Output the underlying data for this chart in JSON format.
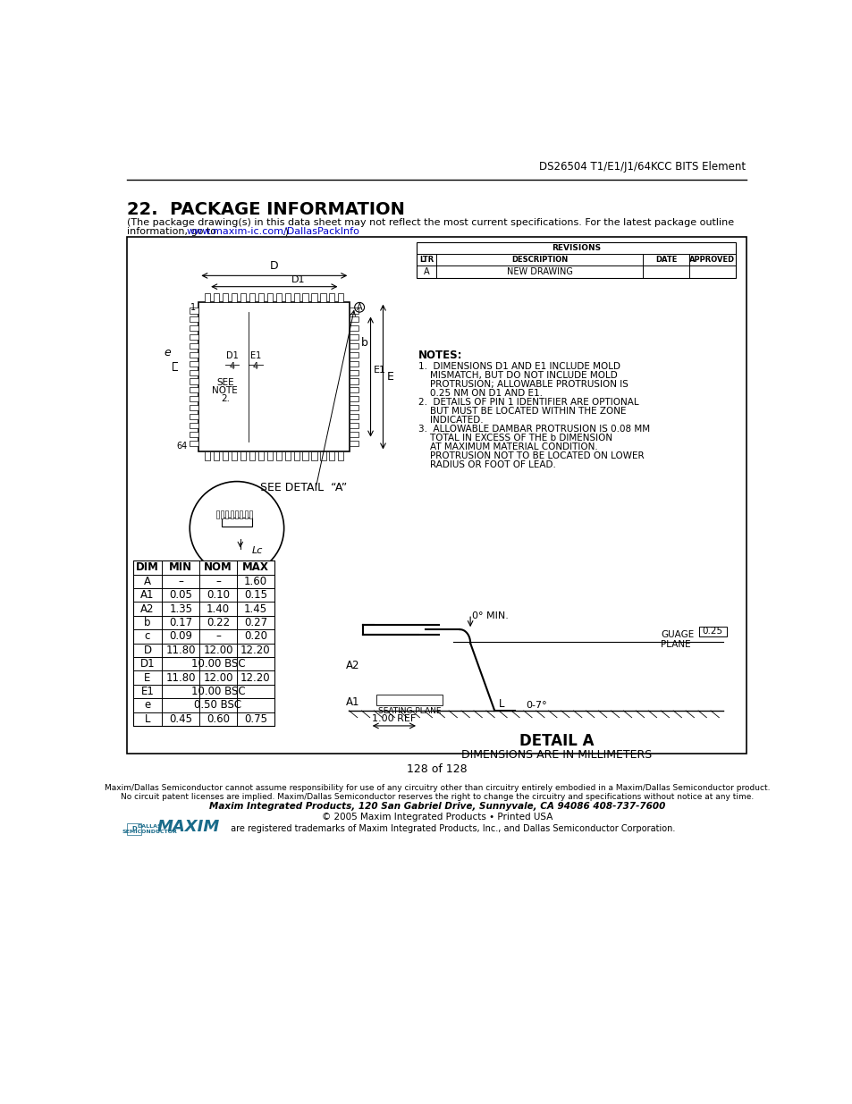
{
  "header_right": "DS26504 T1/E1/J1/64KCC BITS Element",
  "section_title": "22.  PACKAGE INFORMATION",
  "section_body_line1": "(The package drawing(s) in this data sheet may not reflect the most current specifications. For the latest package outline",
  "section_body_line2": "information, go to ",
  "url_text": "www.maxim-ic.com/DallasPackInfo",
  "section_body_line2_end": ".)",
  "page_label": "128 of 128",
  "footer_line1": "Maxim/Dallas Semiconductor cannot assume responsibility for use of any circuitry other than circuitry entirely embodied in a Maxim/Dallas Semiconductor product.",
  "footer_line2": "No circuit patent licenses are implied. Maxim/Dallas Semiconductor reserves the right to change the circuitry and specifications without notice at any time.",
  "footer_line3": "Maxim Integrated Products, 120 San Gabriel Drive, Sunnyvale, CA 94086 408-737-7600",
  "footer_line4": "© 2005 Maxim Integrated Products • Printed USA",
  "footer_trademark": " are registered trademarks of Maxim Integrated Products, Inc., and Dallas Semiconductor Corporation.",
  "dim_table": {
    "headers": [
      "DIM",
      "MIN",
      "NOM",
      "MAX"
    ],
    "rows": [
      [
        "A",
        "–",
        "–",
        "1.60"
      ],
      [
        "A1",
        "0.05",
        "0.10",
        "0.15"
      ],
      [
        "A2",
        "1.35",
        "1.40",
        "1.45"
      ],
      [
        "b",
        "0.17",
        "0.22",
        "0.27"
      ],
      [
        "c",
        "0.09",
        "–",
        "0.20"
      ],
      [
        "D",
        "11.80",
        "12.00",
        "12.20"
      ],
      [
        "D1",
        "",
        "10.00 BSC",
        ""
      ],
      [
        "E",
        "11.80",
        "12.00",
        "12.20"
      ],
      [
        "E1",
        "",
        "10.00 BSC",
        ""
      ],
      [
        "e",
        "",
        "0.50 BSC",
        ""
      ],
      [
        "L",
        "0.45",
        "0.60",
        "0.75"
      ]
    ]
  },
  "notes_header": "NOTES:",
  "notes": [
    "1.  DIMENSIONS D1 AND E1 INCLUDE MOLD",
    "    MISMATCH, BUT DO NOT INCLUDE MOLD",
    "    PROTRUSION; ALLOWABLE PROTRUSION IS",
    "    0.25 NM ON D1 AND E1.",
    "2.  DETAILS OF PIN 1 IDENTIFIER ARE OPTIONAL",
    "    BUT MUST BE LOCATED WITHIN THE ZONE",
    "    INDICATED.",
    "3.  ALLOWABLE DAMBAR PROTRUSION IS 0.08 MM",
    "    TOTAL IN EXCESS OF THE b DIMENSION",
    "    AT MAXIMUM MATERIAL CONDITION.",
    "    PROTRUSION NOT TO BE LOCATED ON LOWER",
    "    RADIUS OR FOOT OF LEAD."
  ],
  "revisions_header": "REVISIONS",
  "revisions_cols": [
    "LTR",
    "DESCRIPTION",
    "DATE",
    "APPROVED"
  ],
  "revisions_row": [
    "A",
    "NEW DRAWING",
    "",
    ""
  ],
  "detail_a_label": "DETAIL A",
  "dim_label": "DIMENSIONS ARE IN MILLIMETERS",
  "bg_color": "#ffffff",
  "text_color": "#000000",
  "url_color": "#0000cc"
}
